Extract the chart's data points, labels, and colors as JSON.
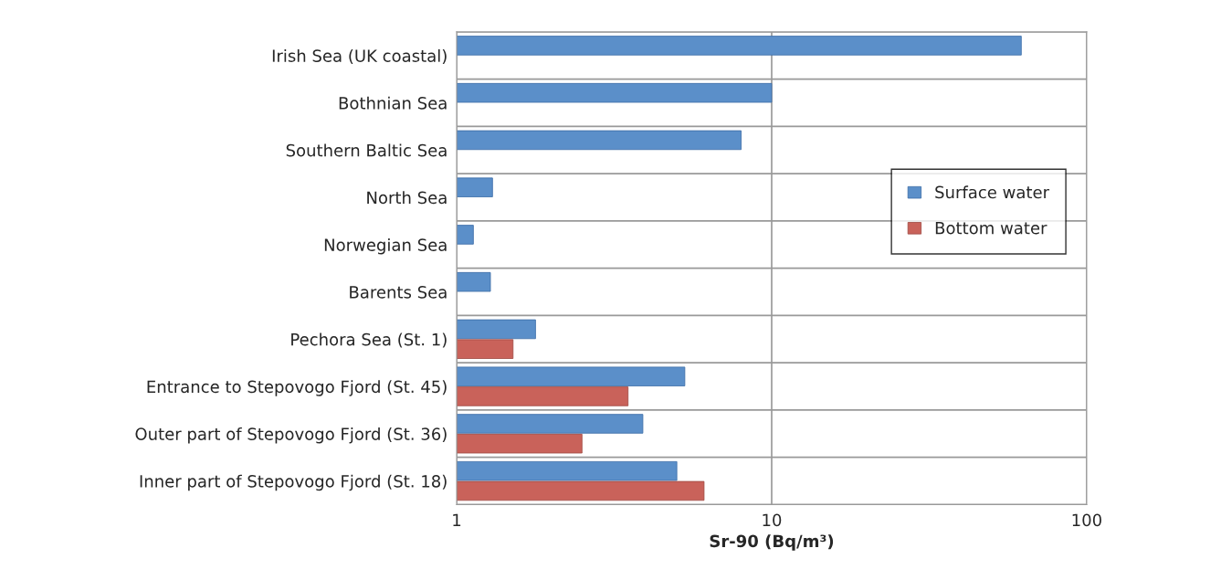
{
  "chart_data": {
    "type": "bar",
    "orientation": "horizontal",
    "xlabel": "Sr-90 (Bq/m³)",
    "categories": [
      "Irish Sea (UK coastal)",
      "Bothnian Sea",
      "Southern Baltic Sea",
      "North Sea",
      "Norwegian Sea",
      "Barents Sea",
      "Pechora Sea (St. 1)",
      "Entrance to Stepovogo Fjord (St. 45)",
      "Outer part of Stepovogo Fjord (St. 36)",
      "Inner part of Stepovogo Fjord (St. 18)"
    ],
    "series": [
      {
        "name": "Surface water",
        "color": "#5b8fc9",
        "values": [
          62,
          10,
          8.0,
          1.3,
          1.13,
          1.28,
          1.78,
          5.3,
          3.9,
          5.0
        ]
      },
      {
        "name": "Bottom water",
        "color": "#c9625a",
        "values": [
          null,
          null,
          null,
          null,
          null,
          null,
          1.51,
          3.5,
          2.5,
          6.1
        ]
      }
    ],
    "log": "x",
    "xlim": [
      1,
      100
    ],
    "xticks": [
      1,
      10,
      100
    ],
    "grid": "x",
    "legend": "right"
  }
}
